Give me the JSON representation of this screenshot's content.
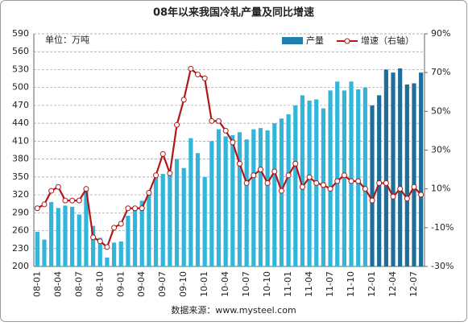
{
  "chart_data": {
    "type": "bar_line",
    "title": "08年以来我国冷轧产量及同比增速",
    "unit_label": "单位：万吨",
    "source": "数据来源：www.mysteel.com",
    "categories": [
      "08-01",
      null,
      null,
      "08-04",
      null,
      null,
      "08-07",
      null,
      null,
      "08-10",
      null,
      null,
      "09-01",
      null,
      null,
      "09-04",
      null,
      null,
      "09-07",
      null,
      null,
      "09-10",
      null,
      null,
      "10-01",
      null,
      null,
      "10-04",
      null,
      null,
      "10-07",
      null,
      null,
      "10-10",
      null,
      null,
      "11-01",
      null,
      null,
      "11-04",
      null,
      null,
      "11-07",
      null,
      null,
      "11-10",
      null,
      null,
      "12-01",
      null,
      null,
      "12-04",
      null,
      null,
      "12-07",
      null
    ],
    "series": [
      {
        "name": "产量",
        "type": "bar",
        "color": "#1f7fb0",
        "colors": [
          "#33b5d9",
          "#33b5d9",
          "#33b5d9",
          "#33b5d9",
          "#33b5d9",
          "#33b5d9",
          "#33b5d9",
          "#33b5d9",
          "#33b5d9",
          "#33b5d9",
          "#33b5d9",
          "#33b5d9",
          "#33b5d9",
          "#33b5d9",
          "#33b5d9",
          "#33b5d9",
          "#33b5d9",
          "#33b5d9",
          "#33b5d9",
          "#33b5d9",
          "#33b5d9",
          "#33b5d9",
          "#33b5d9",
          "#33b5d9",
          "#33b5d9",
          "#33b5d9",
          "#33b5d9",
          "#33b5d9",
          "#33b5d9",
          "#33b5d9",
          "#33b5d9",
          "#33b5d9",
          "#33b5d9",
          "#33b5d9",
          "#33b5d9",
          "#33b5d9",
          "#33b5d9",
          "#33b5d9",
          "#33b5d9",
          "#33b5d9",
          "#33b5d9",
          "#33b5d9",
          "#33b5d9",
          "#33b5d9",
          "#33b5d9",
          "#33b5d9",
          "#33b5d9",
          "#33b5d9",
          "#1f6e9a",
          "#1f6e9a",
          "#1f6e9a",
          "#1f6e9a",
          "#1f6e9a",
          "#1f6e9a",
          "#1f6e9a",
          "#1f6e9a"
        ],
        "values": [
          258,
          245,
          308,
          298,
          302,
          300,
          287,
          330,
          268,
          248,
          215,
          240,
          242,
          285,
          300,
          310,
          320,
          350,
          355,
          360,
          380,
          365,
          415,
          390,
          350,
          410,
          430,
          418,
          420,
          425,
          413,
          430,
          432,
          428,
          440,
          448,
          455,
          470,
          487,
          478,
          480,
          465,
          495,
          510,
          495,
          510,
          497,
          500,
          470,
          487,
          530,
          525,
          532,
          505,
          507,
          525
        ]
      },
      {
        "name": "增速（右轴）",
        "type": "line",
        "axis": "y2",
        "color": "#b01818",
        "values": [
          0,
          2,
          9,
          11,
          4,
          4,
          4,
          10,
          -15,
          -17,
          -20,
          -10,
          -8,
          0,
          0,
          0,
          8,
          17,
          28,
          18,
          43,
          56,
          72,
          69,
          67,
          45,
          45,
          40,
          34,
          23,
          13,
          17,
          20,
          13,
          19,
          9,
          17,
          23,
          11,
          16,
          13,
          12,
          10,
          14,
          17,
          14,
          14,
          10,
          4,
          13,
          13,
          6,
          10,
          5,
          11,
          7
        ]
      }
    ],
    "ylim": [
      200,
      590
    ],
    "yticks": [
      200,
      230,
      260,
      290,
      320,
      350,
      380,
      410,
      440,
      470,
      500,
      530,
      560,
      590
    ],
    "y2lim": [
      -30,
      90
    ],
    "y2ticks": [
      {
        "value": -30,
        "label": "-30%"
      },
      {
        "value": -10,
        "label": "-10%"
      },
      {
        "value": 10,
        "label": "10%"
      },
      {
        "value": 30,
        "label": "30%"
      },
      {
        "value": 50,
        "label": "50%"
      },
      {
        "value": 70,
        "label": "70%"
      },
      {
        "value": 90,
        "label": "90%"
      }
    ],
    "grid": true,
    "legend": "top-right"
  }
}
